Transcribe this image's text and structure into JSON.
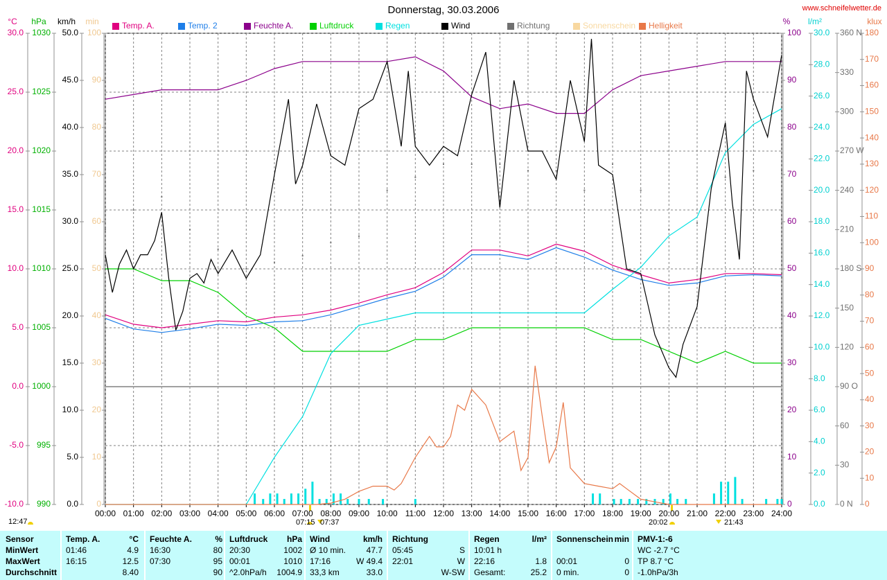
{
  "chart_data": {
    "type": "line",
    "title": "Donnerstag, 30.03.2006",
    "source": "www.schneifelwetter.de",
    "grid": true,
    "xlim": [
      0,
      24
    ],
    "xticks": [
      {
        "value": 0,
        "label": "00:00"
      },
      {
        "value": 1,
        "label": "01:00"
      },
      {
        "value": 2,
        "label": "02:00"
      },
      {
        "value": 3,
        "label": "03:00"
      },
      {
        "value": 4,
        "label": "04:00"
      },
      {
        "value": 5,
        "label": "05:00"
      },
      {
        "value": 6,
        "label": "06:00"
      },
      {
        "value": 7,
        "label": "07:00"
      },
      {
        "value": 8,
        "label": "08:00"
      },
      {
        "value": 9,
        "label": "09:00"
      },
      {
        "value": 10,
        "label": "10:00"
      },
      {
        "value": 11,
        "label": "11:00"
      },
      {
        "value": 12,
        "label": "12:00"
      },
      {
        "value": 13,
        "label": "13:00"
      },
      {
        "value": 14,
        "label": "14:00"
      },
      {
        "value": 15,
        "label": "15:00"
      },
      {
        "value": 16,
        "label": "16:00"
      },
      {
        "value": 17,
        "label": "17:00"
      },
      {
        "value": 18,
        "label": "18:00"
      },
      {
        "value": 19,
        "label": "19:00"
      },
      {
        "value": 20,
        "label": "20:00"
      },
      {
        "value": 21,
        "label": "21:00"
      },
      {
        "value": 22,
        "label": "22:00"
      },
      {
        "value": 23,
        "label": "23:00"
      },
      {
        "value": 24,
        "label": "24:00"
      }
    ],
    "axes": {
      "y": {
        "label": "°C",
        "color": "#e0007f",
        "lim": [
          -10,
          30
        ],
        "ticks": [
          {
            "value": -10,
            "label": "-10.0"
          },
          {
            "value": -5,
            "label": "-5.0"
          },
          {
            "value": 0,
            "label": "0.0"
          },
          {
            "value": 5,
            "label": "5.0"
          },
          {
            "value": 10,
            "label": "10.0"
          },
          {
            "value": 15,
            "label": "15.0"
          },
          {
            "value": 20,
            "label": "20.0"
          },
          {
            "value": 25,
            "label": "25.0"
          },
          {
            "value": 30,
            "label": "30.0"
          }
        ]
      },
      "y2": {
        "label": "hPa",
        "color": "#00b000",
        "lim": [
          990,
          1030
        ],
        "ticks": [
          990,
          995,
          1000,
          1005,
          1010,
          1015,
          1020,
          1025,
          1030
        ]
      },
      "y3": {
        "label": "km/h",
        "color": "#000000",
        "lim": [
          0,
          50
        ],
        "ticks": [
          {
            "value": 0,
            "label": "0.0"
          },
          {
            "value": 5,
            "label": "5.0"
          },
          {
            "value": 10,
            "label": "10.0"
          },
          {
            "value": 15,
            "label": "15.0"
          },
          {
            "value": 20,
            "label": "20.0"
          },
          {
            "value": 25,
            "label": "25.0"
          },
          {
            "value": 30,
            "label": "30.0"
          },
          {
            "value": 35,
            "label": "35.0"
          },
          {
            "value": 40,
            "label": "40.0"
          },
          {
            "value": 45,
            "label": "45.0"
          },
          {
            "value": 50,
            "label": "50.0"
          }
        ]
      },
      "y4": {
        "label": "min",
        "color": "#f0c890",
        "lim": [
          0,
          100
        ],
        "ticks": [
          0,
          10,
          20,
          30,
          40,
          50,
          60,
          70,
          80,
          90,
          100
        ]
      },
      "y5": {
        "label": "%",
        "color": "#8b008b",
        "lim": [
          0,
          100
        ],
        "ticks": [
          0,
          10,
          20,
          30,
          40,
          50,
          60,
          70,
          80,
          90,
          100
        ]
      },
      "y6": {
        "label": "l/m²",
        "color": "#00d0d0",
        "lim": [
          0,
          30
        ],
        "ticks": [
          {
            "value": 0,
            "label": "0.0"
          },
          {
            "value": 2,
            "label": "2.0"
          },
          {
            "value": 4,
            "label": "4.0"
          },
          {
            "value": 6,
            "label": "6.0"
          },
          {
            "value": 8,
            "label": "8.0"
          },
          {
            "value": 10,
            "label": "10.0"
          },
          {
            "value": 12,
            "label": "12.0"
          },
          {
            "value": 14,
            "label": "14.0"
          },
          {
            "value": 16,
            "label": "16.0"
          },
          {
            "value": 18,
            "label": "18.0"
          },
          {
            "value": 20,
            "label": "20.0"
          },
          {
            "value": 22,
            "label": "22.0"
          },
          {
            "value": 24,
            "label": "24.0"
          },
          {
            "value": 26,
            "label": "26.0"
          },
          {
            "value": 28,
            "label": "28.0"
          },
          {
            "value": 30,
            "label": "30.0"
          }
        ]
      },
      "y7": {
        "color": "#707070",
        "lim": [
          0,
          360
        ],
        "ticks": [
          {
            "value": 0,
            "label": "0   N"
          },
          30,
          60,
          {
            "value": 90,
            "label": "90   O"
          },
          120,
          150,
          {
            "value": 180,
            "label": "180 S"
          },
          210,
          240,
          {
            "value": 270,
            "label": "270 W"
          },
          300,
          330,
          {
            "value": 360,
            "label": "360 N"
          }
        ]
      },
      "y8": {
        "label": "klux",
        "color": "#e87848",
        "lim": [
          0,
          180
        ],
        "ticks": [
          0,
          10,
          20,
          30,
          40,
          50,
          60,
          70,
          80,
          90,
          100,
          110,
          120,
          130,
          140,
          150,
          160,
          170,
          180
        ]
      }
    },
    "x": [
      0,
      1,
      2,
      3,
      4,
      5,
      6,
      7,
      8,
      9,
      10,
      11,
      12,
      13,
      14,
      15,
      16,
      17,
      18,
      19,
      20,
      21,
      22,
      23,
      24
    ],
    "series": [
      {
        "name": "Temp. A.",
        "color": "#e0007f",
        "axis": "y",
        "values": [
          6.1,
          5.3,
          5.0,
          5.3,
          5.6,
          5.5,
          5.9,
          6.1,
          6.5,
          7.1,
          7.8,
          8.4,
          9.7,
          11.6,
          11.6,
          11.1,
          12.1,
          11.5,
          10.3,
          9.5,
          8.8,
          9.1,
          9.6,
          9.6,
          9.5
        ]
      },
      {
        "name": "Temp. 2",
        "color": "#1e7ee8",
        "axis": "y",
        "values": [
          5.8,
          4.9,
          4.6,
          4.9,
          5.3,
          5.2,
          5.5,
          5.6,
          6.1,
          6.8,
          7.5,
          8.1,
          9.3,
          11.2,
          11.2,
          10.8,
          11.8,
          11.0,
          9.9,
          9.1,
          8.6,
          8.8,
          9.4,
          9.5,
          9.4
        ]
      },
      {
        "name": "Feuchte A.",
        "color": "#8b008b",
        "axis": "y5",
        "values": [
          86,
          87,
          88,
          88,
          88,
          90,
          92.5,
          94,
          94,
          94,
          94,
          95,
          92,
          86.5,
          84,
          85,
          83,
          83,
          88,
          91,
          92,
          93,
          94,
          94,
          94
        ]
      },
      {
        "name": "Luftdruck",
        "color": "#00d000",
        "axis": "y2",
        "values": [
          1010,
          1010,
          1009,
          1009,
          1008,
          1006,
          1005,
          1003,
          1003,
          1003,
          1003,
          1004,
          1004,
          1005,
          1005,
          1005,
          1005,
          1005,
          1004,
          1004,
          1003,
          1002,
          1003,
          1002,
          1002
        ]
      },
      {
        "name": "Regen",
        "color": "#00e0e0",
        "axis": "y6",
        "values": [
          0,
          0,
          0,
          0,
          0,
          0,
          3.0,
          5.6,
          9.6,
          11.4,
          11.8,
          12.2,
          12.2,
          12.2,
          12.2,
          12.2,
          12.2,
          12.2,
          13.7,
          15.1,
          17.1,
          18.3,
          22.4,
          24.2,
          25.2
        ],
        "bars": {
          "x": [
            5.3,
            5.6,
            5.85,
            6.1,
            6.35,
            6.6,
            6.85,
            7.1,
            7.35,
            7.6,
            7.85,
            8.1,
            8.35,
            8.6,
            9.0,
            9.35,
            9.85,
            11.0,
            17.3,
            17.55,
            18.05,
            18.3,
            18.6,
            18.9,
            19.2,
            19.5,
            19.8,
            20.05,
            20.3,
            20.6,
            21.6,
            21.85,
            22.1,
            22.35,
            22.6,
            23.45,
            23.85,
            24.0
          ],
          "values": [
            0.7,
            0.35,
            0.7,
            0.7,
            0.35,
            0.7,
            0.7,
            1.0,
            1.45,
            0.35,
            0.35,
            0.7,
            0.7,
            0.35,
            0.35,
            0.35,
            0.35,
            0.35,
            0.7,
            0.7,
            0.35,
            0.35,
            0.35,
            0.35,
            0.35,
            0.35,
            0.35,
            0.7,
            0.35,
            0.35,
            0.7,
            1.45,
            1.45,
            1.75,
            0.35,
            0.35,
            0.35,
            0.35
          ]
        }
      },
      {
        "name": "Wind",
        "color": "#000000",
        "axis": "y3",
        "x": [
          0,
          0.25,
          0.5,
          0.75,
          1,
          1.25,
          1.5,
          1.75,
          2,
          2.25,
          2.5,
          2.75,
          3,
          3.25,
          3.5,
          3.75,
          4,
          4.5,
          5,
          5.5,
          6,
          6.5,
          6.75,
          7,
          7.5,
          8,
          8.5,
          9,
          9.5,
          10,
          10.5,
          10.75,
          11,
          11.5,
          12,
          12.5,
          13,
          13.5,
          14,
          14.5,
          15,
          15.5,
          16,
          16.5,
          17,
          17.25,
          17.5,
          18,
          18.5,
          19,
          19.5,
          20,
          20.25,
          20.5,
          21,
          21.5,
          22,
          22.25,
          22.5,
          22.75,
          23,
          23.5,
          24
        ],
        "values": [
          26.5,
          22.5,
          25.5,
          27,
          25,
          26.5,
          26.5,
          28,
          31,
          24,
          18.5,
          20.5,
          24,
          24.5,
          23.5,
          26,
          24.5,
          27,
          24,
          26.5,
          35,
          43,
          34,
          36,
          42.5,
          37,
          36,
          42,
          43,
          47,
          38,
          46,
          38,
          36,
          38,
          37,
          43.5,
          48,
          31.5,
          45,
          37.5,
          37.5,
          34.5,
          45,
          38.5,
          49.4,
          36,
          35,
          25,
          24.5,
          18,
          14.5,
          13.5,
          17,
          21,
          33.5,
          40.5,
          32,
          26,
          46,
          43,
          39,
          47.7
        ]
      },
      {
        "name": "Richtung",
        "color": "#707070",
        "axis": "y7",
        "type": "scatter",
        "values": [
          210,
          225,
          235,
          210,
          195,
          180,
          185,
          190,
          200,
          205,
          240,
          250,
          260,
          260,
          260,
          255,
          255,
          240,
          260,
          240,
          210,
          215,
          250,
          255,
          255
        ]
      },
      {
        "name": "Sonnenschein",
        "color": "#f8d8a0",
        "axis": "y4"
      },
      {
        "name": "Helligkeit",
        "color": "#e87848",
        "axis": "y8",
        "x": [
          0,
          7.5,
          8,
          8.5,
          9,
          9.5,
          10,
          10.25,
          10.5,
          11,
          11.5,
          11.75,
          12,
          12.25,
          12.5,
          12.75,
          13,
          13.5,
          14,
          14.5,
          14.75,
          15,
          15.25,
          15.5,
          15.75,
          16,
          16.25,
          16.5,
          17,
          17.5,
          18,
          18.25,
          18.5,
          19,
          19.5,
          20,
          24
        ],
        "values": [
          0,
          0,
          0.5,
          2,
          5,
          7,
          7,
          5.5,
          8,
          18,
          26,
          22,
          22,
          26,
          38,
          36,
          44,
          38,
          24,
          28,
          13,
          18,
          53,
          34,
          16,
          22,
          39,
          14,
          8,
          7,
          6,
          8,
          6,
          2,
          1,
          0,
          0
        ]
      }
    ],
    "annotations": [
      "12:47",
      "07:15",
      "07:37",
      "20:02",
      "21:43"
    ]
  },
  "stats": {
    "row_labels": [
      "Sensor",
      "MinWert",
      "MaxWert",
      "Durchschnitt"
    ],
    "groups": [
      {
        "name": "Temp. A.",
        "unit": "°C",
        "rows": [
          {
            "left": "01:46",
            "right": "4.9"
          },
          {
            "left": "16:15",
            "right": "12.5"
          },
          {
            "right": "8.40"
          }
        ]
      },
      {
        "name": "Feuchte A.",
        "unit": "%",
        "rows": [
          {
            "left": "16:30",
            "right": "80"
          },
          {
            "left": "07:30",
            "right": "95"
          },
          {
            "right": "90"
          }
        ]
      },
      {
        "name": "Luftdruck",
        "unit": "hPa",
        "rows": [
          {
            "left": "20:30",
            "right": "1002"
          },
          {
            "left": "00:01",
            "right": "1010"
          },
          {
            "left": "^2.0hPa/h",
            "right": "1004.9"
          }
        ]
      },
      {
        "name": "Wind",
        "unit": "km/h",
        "rows": [
          {
            "left": "Ø 10 min.",
            "right": "47.7"
          },
          {
            "left": "17:16",
            "right": "W 49.4"
          },
          {
            "left": "33,3 km",
            "right": "33.0"
          }
        ]
      },
      {
        "name": "Richtung",
        "rows": [
          {
            "left": "05:45",
            "right": "S"
          },
          {
            "left": "22:01",
            "right": "W"
          },
          {
            "right": "W-SW"
          }
        ]
      },
      {
        "name": "Regen",
        "unit": "l/m²",
        "rows": [
          {
            "left": "10:01 h"
          },
          {
            "left": "22:16",
            "right": "1.8"
          },
          {
            "left": "Gesamt:",
            "right": "25.2"
          }
        ]
      },
      {
        "name": "Sonnenschein",
        "unit": "min",
        "rows": [
          {},
          {
            "left": "00:01",
            "right": "0"
          },
          {
            "left": "0 min.",
            "right": "0"
          }
        ]
      },
      {
        "name": "PMV-1:-6",
        "rows": [
          {
            "left": "WC -2.7 °C"
          },
          {
            "left": "TP 8.7 °C"
          },
          {
            "left": "-1.0hPa/3h"
          }
        ]
      }
    ]
  }
}
